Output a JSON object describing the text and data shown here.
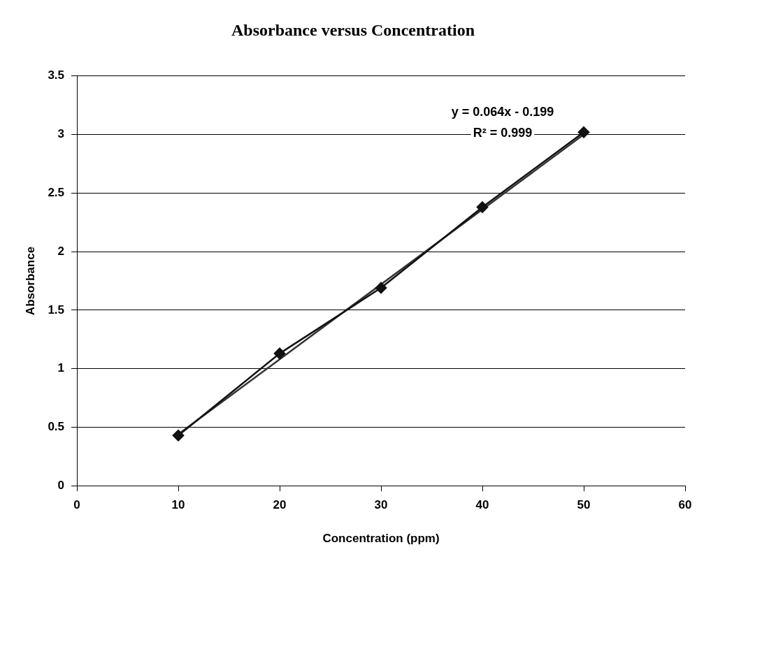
{
  "chart_data": {
    "type": "line",
    "title": "Absorbance versus Concentration",
    "xlabel": "Concentration (ppm)",
    "ylabel": "Absorbance",
    "x": [
      10,
      20,
      30,
      40,
      50
    ],
    "series": [
      {
        "color": "#111111",
        "values": [
          0.43,
          1.13,
          1.69,
          2.38,
          3.02
        ],
        "marker": "diamond"
      },
      {
        "color": "#333333",
        "x": [
          10,
          50
        ],
        "values": [
          0.44,
          3.0
        ],
        "marker": "none"
      }
    ],
    "xlim": [
      0,
      60
    ],
    "xticks": [
      0,
      10,
      20,
      30,
      40,
      50,
      60
    ],
    "ylim": [
      0,
      3.5
    ],
    "yticks": [
      0,
      0.5,
      1,
      1.5,
      2,
      2.5,
      3,
      3.5
    ],
    "grid": "y",
    "legend": false,
    "annotations": [
      "y = 0.064x - 0.199",
      "R² = 0.999"
    ]
  }
}
